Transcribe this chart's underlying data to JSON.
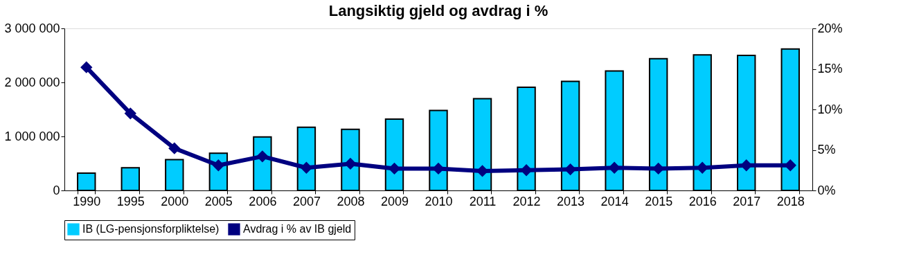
{
  "chart_data": {
    "type": "bar",
    "title": "Langsiktig gjeld og avdrag i %",
    "categories": [
      "1990",
      "1995",
      "2000",
      "2005",
      "2006",
      "2007",
      "2008",
      "2009",
      "2010",
      "2011",
      "2012",
      "2013",
      "2014",
      "2015",
      "2016",
      "2017",
      "2018"
    ],
    "series": [
      {
        "name": "IB (LG-pensjonsforpliktelse)",
        "color": "#00ccff",
        "values": [
          320000,
          420000,
          570000,
          690000,
          990000,
          1170000,
          1130000,
          1320000,
          1480000,
          1700000,
          1910000,
          2020000,
          2210000,
          2440000,
          2510000,
          2500000,
          2620000
        ]
      },
      {
        "name": "Avdrag i % av IB gjeld",
        "type": "line",
        "axis": "y2",
        "color": "#000080",
        "marker": "diamond",
        "values": [
          15.2,
          9.5,
          5.2,
          3.1,
          4.2,
          2.8,
          3.3,
          2.7,
          2.7,
          2.4,
          2.5,
          2.6,
          2.8,
          2.7,
          2.8,
          3.1,
          3.1
        ]
      }
    ],
    "ylim": [
      0,
      3000000
    ],
    "yticks": [
      0,
      {
        "value": 1000000,
        "label": "1 000 000"
      },
      {
        "value": 2000000,
        "label": "2 000 000"
      },
      {
        "value": 3000000,
        "label": "3 000 000"
      }
    ],
    "y2lim": [
      0,
      20
    ],
    "y2ticks": [
      {
        "value": 0,
        "label": "0%"
      },
      {
        "value": 5,
        "label": "5%"
      },
      {
        "value": 10,
        "label": "10%"
      },
      {
        "value": 15,
        "label": "15%"
      },
      {
        "value": 20,
        "label": "20%"
      }
    ],
    "legend": "bottom",
    "grid": false
  }
}
